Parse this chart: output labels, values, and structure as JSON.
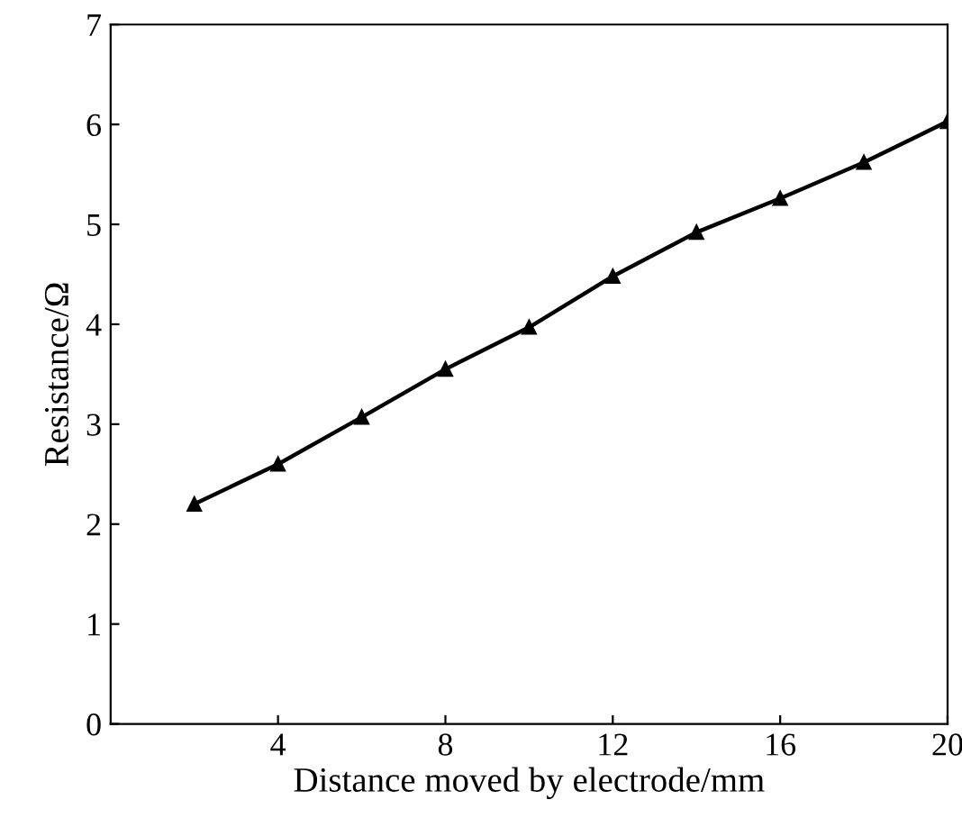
{
  "chart_data": {
    "type": "line",
    "xlabel": "Distance moved by electrode/mm",
    "ylabel": "Resistance/Ω",
    "x": [
      2,
      4,
      6,
      8,
      10,
      12,
      14,
      16,
      18,
      20
    ],
    "series": [
      {
        "color": "#000000",
        "values": [
          2.2,
          2.6,
          3.07,
          3.55,
          3.97,
          4.48,
          4.92,
          5.26,
          5.62,
          6.03
        ]
      }
    ],
    "xlim": [
      0,
      20
    ],
    "xticks": [
      4,
      8,
      12,
      16,
      20
    ],
    "ylim": [
      0,
      7
    ],
    "yticks": [
      0,
      1,
      2,
      3,
      4,
      5,
      6,
      7
    ],
    "grid": false,
    "marker": "triangle",
    "line_style": "solid"
  }
}
